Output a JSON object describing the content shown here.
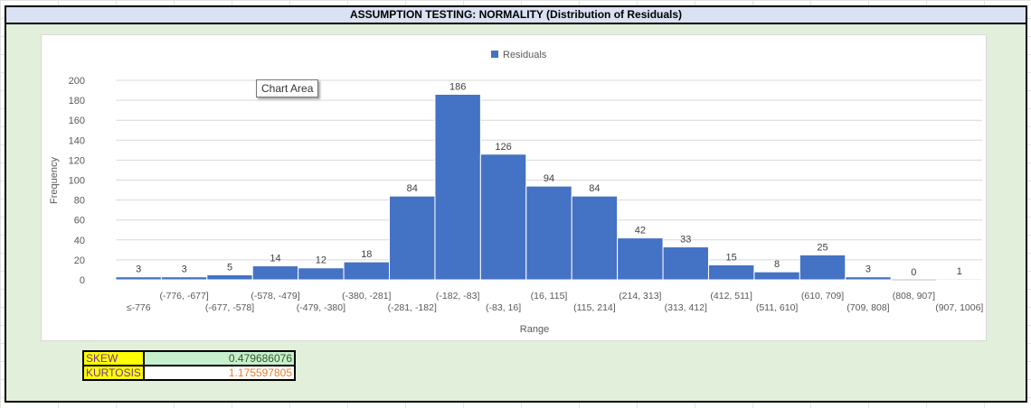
{
  "title": "ASSUMPTION TESTING: NORMALITY (Distribution of Residuals)",
  "tooltip": "Chart Area",
  "colors": {
    "bar": "#4472c4",
    "background": "#e2efda",
    "title_fill": "#d9e1f2"
  },
  "chart_data": {
    "type": "bar",
    "title": "",
    "xlabel": "Range",
    "ylabel": "Frequency",
    "ylim": [
      0,
      200
    ],
    "yticks": [
      0,
      20,
      40,
      60,
      80,
      100,
      120,
      140,
      160,
      180,
      200
    ],
    "grid": true,
    "legend_position": "top",
    "categories": [
      "≤-776",
      "(-776, -677]",
      "(-677, -578]",
      "(-578, -479]",
      "(-479, -380]",
      "(-380, -281]",
      "(-281, -182]",
      "(-182, -83]",
      "(-83, 16]",
      "(16, 115]",
      "(115, 214]",
      "(214, 313]",
      "(313, 412]",
      "(412, 511]",
      "(511, 610]",
      "(610, 709]",
      "(709, 808]",
      "(808, 907]",
      "(907, 1006]"
    ],
    "series": [
      {
        "name": "Residuals",
        "values": [
          3,
          3,
          5,
          14,
          12,
          18,
          84,
          186,
          126,
          94,
          84,
          42,
          33,
          15,
          8,
          25,
          3,
          0,
          1
        ]
      }
    ]
  },
  "stats": {
    "skew_label": "SKEW",
    "skew_value": "0.479686076",
    "kurtosis_label": "KURTOSIS",
    "kurtosis_value": "1.175597805"
  }
}
